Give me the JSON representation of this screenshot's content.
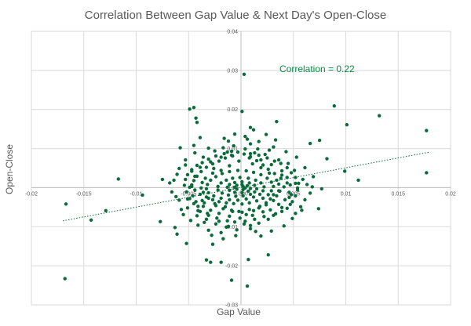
{
  "chart_data": {
    "type": "scatter",
    "title": "Correlation Between Gap Value & Next Day's Open-Close",
    "xlabel": "Gap Value",
    "ylabel": "Open-Close",
    "xlim": [
      -0.02,
      0.02
    ],
    "ylim": [
      -0.03,
      0.04
    ],
    "x_ticks": [
      -0.02,
      -0.015,
      -0.01,
      -0.005,
      0,
      0.005,
      0.01,
      0.015,
      0.02
    ],
    "x_tick_labels": [
      "-0.02",
      "-0.015",
      "-0.01",
      "-0.005",
      "0.000",
      "0.005",
      "0.01",
      "0.015",
      "0.02"
    ],
    "y_ticks": [
      -0.03,
      -0.02,
      -0.01,
      0,
      0.01,
      0.02,
      0.03,
      0.04
    ],
    "y_tick_labels": [
      "-0.03",
      "-0.02",
      "-0.01",
      "0.00",
      "0.01",
      "0.02",
      "0.03",
      "0.04"
    ],
    "grid": true,
    "annotation": "Correlation = 0.22",
    "trendline": {
      "style": "dotted",
      "x": [
        -0.017,
        0.018
      ],
      "y": [
        -0.0085,
        0.0091
      ]
    },
    "colors": {
      "points": "#0b6b3a",
      "trend": "#0b6b3a",
      "annotation": "#0b8a45"
    },
    "points": [
      [
        0.0003,
        0.029
      ],
      [
        -0.0045,
        0.0205
      ],
      [
        -0.0049,
        0.0201
      ],
      [
        0.0001,
        0.0195
      ],
      [
        0.0089,
        0.0209
      ],
      [
        0.0132,
        0.0184
      ],
      [
        0.0101,
        0.0161
      ],
      [
        0.0177,
        0.0146
      ],
      [
        0.0177,
        0.0038
      ],
      [
        -0.0042,
        0.0167
      ],
      [
        -0.0043,
        0.0178
      ],
      [
        0.0034,
        0.0169
      ],
      [
        0.0012,
        0.0148
      ],
      [
        0.0009,
        0.0154
      ],
      [
        0.0033,
        0.0122
      ],
      [
        0.0075,
        0.0121
      ],
      [
        0.0066,
        0.0113
      ],
      [
        -0.0058,
        0.0102
      ],
      [
        -0.0045,
        0.0108
      ],
      [
        0.0027,
        0.0096
      ],
      [
        0.0009,
        0.0112
      ],
      [
        0.0082,
        0.0074
      ],
      [
        0.0112,
        0.0019
      ],
      [
        0.0099,
        0.0042
      ],
      [
        0.0052,
        0.0011
      ],
      [
        0.0054,
        -0.0001
      ],
      [
        0.0039,
        0.0032
      ],
      [
        0.0077,
        -0.0003
      ],
      [
        0.0068,
        0.0002
      ],
      [
        0.0048,
        -0.0018
      ],
      [
        0.0061,
        -0.0031
      ],
      [
        0.0047,
        -0.0043
      ],
      [
        0.0058,
        -0.0058
      ],
      [
        0.0074,
        -0.0054
      ],
      [
        0.0052,
        -0.0066
      ],
      [
        -0.0167,
        -0.0042
      ],
      [
        -0.0168,
        -0.0233
      ],
      [
        -0.0143,
        -0.0083
      ],
      [
        -0.0129,
        -0.0059
      ],
      [
        -0.0117,
        0.0022
      ],
      [
        -0.0094,
        -0.0019
      ],
      [
        -0.0075,
        0.0021
      ],
      [
        -0.0077,
        -0.0087
      ],
      [
        -0.0063,
        -0.0102
      ],
      [
        -0.0061,
        -0.0119
      ],
      [
        -0.0052,
        -0.0143
      ],
      [
        -0.0055,
        -0.0069
      ],
      [
        -0.0051,
        -0.0029
      ],
      [
        -0.0049,
        0.0001
      ],
      [
        -0.0047,
        0.0046
      ],
      [
        -0.0037,
        -0.0033
      ],
      [
        -0.0035,
        -0.0089
      ],
      [
        -0.0033,
        -0.0185
      ],
      [
        -0.0029,
        -0.0191
      ],
      [
        -0.0028,
        -0.0122
      ],
      [
        -0.0009,
        -0.0237
      ],
      [
        0.0006,
        -0.0252
      ],
      [
        0.0007,
        -0.0184
      ],
      [
        0.0026,
        -0.0172
      ],
      [
        -0.0019,
        -0.0191
      ],
      [
        -0.0027,
        -0.0145
      ],
      [
        -0.0017,
        -0.0131
      ],
      [
        -0.0005,
        -0.0123
      ],
      [
        0.0014,
        -0.0112
      ],
      [
        0.0009,
        -0.0097
      ],
      [
        0.0003,
        -0.0093
      ],
      [
        -0.0012,
        -0.0099
      ],
      [
        -0.0021,
        -0.0086
      ],
      [
        -0.0031,
        -0.0071
      ],
      [
        -0.0039,
        -0.0061
      ],
      [
        -0.0041,
        -0.0048
      ],
      [
        -0.0035,
        -0.0039
      ],
      [
        -0.0025,
        -0.0041
      ],
      [
        -0.0015,
        -0.0049
      ],
      [
        -0.0009,
        -0.0058
      ],
      [
        -0.0002,
        -0.0061
      ],
      [
        0.0005,
        -0.0069
      ],
      [
        0.0012,
        -0.0059
      ],
      [
        0.0018,
        -0.0048
      ],
      [
        0.0024,
        -0.0039
      ],
      [
        0.0028,
        -0.0029
      ],
      [
        0.0031,
        -0.0018
      ],
      [
        0.0036,
        -0.0008
      ],
      [
        0.0041,
        0.0002
      ],
      [
        0.0044,
        0.0012
      ],
      [
        0.0038,
        0.0024
      ],
      [
        0.0032,
        0.0036
      ],
      [
        0.0026,
        0.0047
      ],
      [
        0.0021,
        0.0058
      ],
      [
        0.0015,
        0.0069
      ],
      [
        0.0009,
        0.0079
      ],
      [
        0.0003,
        0.0086
      ],
      [
        -0.0003,
        0.0091
      ],
      [
        -0.0009,
        0.0083
      ],
      [
        -0.0015,
        0.0076
      ],
      [
        -0.0021,
        0.0068
      ],
      [
        -0.0027,
        0.0061
      ],
      [
        -0.0033,
        0.0052
      ],
      [
        -0.0038,
        0.0041
      ],
      [
        -0.0042,
        0.0029
      ],
      [
        -0.0045,
        0.0018
      ],
      [
        -0.0047,
        0.0007
      ],
      [
        -0.0044,
        -0.0006
      ],
      [
        -0.0039,
        -0.0017
      ],
      [
        -0.0033,
        -0.0024
      ],
      [
        -0.0027,
        -0.0031
      ],
      [
        -0.0021,
        -0.0036
      ],
      [
        -0.0014,
        -0.0039
      ],
      [
        -0.0007,
        -0.0041
      ],
      [
        0.0001,
        -0.0042
      ],
      [
        0.0008,
        -0.0039
      ],
      [
        0.0015,
        -0.0034
      ],
      [
        0.0021,
        -0.0027
      ],
      [
        0.0026,
        -0.0018
      ],
      [
        0.0029,
        -0.0008
      ],
      [
        0.0031,
        0.0003
      ],
      [
        0.0029,
        0.0014
      ],
      [
        0.0025,
        0.0024
      ],
      [
        0.0019,
        0.0033
      ],
      [
        0.0012,
        0.0039
      ],
      [
        0.0005,
        0.0043
      ],
      [
        -0.0003,
        0.0044
      ],
      [
        -0.0011,
        0.0041
      ],
      [
        -0.0018,
        0.0036
      ],
      [
        -0.0024,
        0.0028
      ],
      [
        -0.0029,
        0.0019
      ],
      [
        -0.0032,
        0.0008
      ],
      [
        -0.0033,
        -0.0003
      ],
      [
        -0.0031,
        -0.0013
      ],
      [
        -0.0026,
        -0.0021
      ],
      [
        -0.0019,
        -0.0027
      ],
      [
        -0.0011,
        -0.0031
      ],
      [
        -0.0003,
        -0.0032
      ],
      [
        0.0005,
        -0.0029
      ],
      [
        0.0012,
        -0.0024
      ],
      [
        0.0018,
        -0.0017
      ],
      [
        0.0021,
        -0.0008
      ],
      [
        0.0022,
        0.0002
      ],
      [
        0.0019,
        0.0012
      ],
      [
        0.0014,
        0.0019
      ],
      [
        0.0007,
        0.0024
      ],
      [
        -0.0001,
        0.0026
      ],
      [
        -0.0008,
        0.0024
      ],
      [
        -0.0014,
        0.0019
      ],
      [
        -0.0019,
        0.0012
      ],
      [
        -0.0022,
        0.0003
      ],
      [
        -0.0022,
        -0.0006
      ],
      [
        -0.0018,
        -0.0014
      ],
      [
        -0.0012,
        -0.0019
      ],
      [
        -0.0005,
        -0.0022
      ],
      [
        0.0002,
        -0.0021
      ],
      [
        0.0009,
        -0.0017
      ],
      [
        0.0013,
        -0.0011
      ],
      [
        0.0015,
        -0.0003
      ],
      [
        0.0013,
        0.0006
      ],
      [
        0.0008,
        0.0012
      ],
      [
        0.0001,
        0.0015
      ],
      [
        -0.0006,
        0.0013
      ],
      [
        -0.0011,
        0.0008
      ],
      [
        -0.0013,
        0.0001
      ],
      [
        -0.0011,
        -0.0007
      ],
      [
        -0.0006,
        -0.0012
      ],
      [
        0.0001,
        -0.0013
      ],
      [
        0.0007,
        -0.0009
      ],
      [
        0.0009,
        -0.0002
      ],
      [
        0.0006,
        0.0005
      ],
      [
        0.0001,
        0.0008
      ],
      [
        -0.0004,
        0.0006
      ],
      [
        -0.0006,
        0.0001
      ],
      [
        -0.0004,
        -0.0004
      ],
      [
        0.0002,
        -0.0005
      ],
      [
        0.0004,
        -0.0001
      ],
      [
        0.0002,
        0.0003
      ],
      [
        -0.0017,
        0.0102
      ],
      [
        -0.0012,
        0.0119
      ],
      [
        0.0004,
        0.0131
      ],
      [
        -0.0007,
        0.0107
      ],
      [
        0.0016,
        0.0099
      ],
      [
        -0.0025,
        0.0094
      ],
      [
        0.0023,
        0.0085
      ],
      [
        -0.0036,
        0.0078
      ],
      [
        0.0036,
        0.0071
      ],
      [
        -0.0053,
        0.0058
      ],
      [
        0.0045,
        0.0062
      ],
      [
        -0.0061,
        0.0034
      ],
      [
        0.0051,
        0.0044
      ],
      [
        -0.0068,
        0.0012
      ],
      [
        0.0059,
        0.0021
      ],
      [
        -0.0066,
        -0.0011
      ],
      [
        0.0063,
        0.0008
      ],
      [
        -0.0059,
        -0.0032
      ],
      [
        0.0046,
        -0.0025
      ],
      [
        -0.0051,
        -0.0052
      ],
      [
        0.0039,
        -0.0051
      ],
      [
        -0.0042,
        -0.0072
      ],
      [
        0.0033,
        -0.0067
      ],
      [
        -0.0033,
        -0.0081
      ],
      [
        0.0026,
        -0.0081
      ],
      [
        -0.0024,
        -0.0093
      ],
      [
        0.0017,
        -0.0091
      ],
      [
        -0.0014,
        -0.0101
      ],
      [
        0.0009,
        -0.0105
      ],
      [
        -0.0004,
        -0.0108
      ],
      [
        0.0019,
        -0.0124
      ],
      [
        -0.0019,
        -0.0115
      ],
      [
        0.0029,
        -0.0111
      ],
      [
        -0.0031,
        -0.0109
      ],
      [
        0.0041,
        -0.0098
      ],
      [
        -0.0041,
        -0.0096
      ],
      [
        0.0049,
        -0.0079
      ],
      [
        -0.0048,
        -0.0084
      ],
      [
        0.0057,
        -0.0049
      ],
      [
        -0.0057,
        -0.0056
      ],
      [
        0.0066,
        -0.0014
      ],
      [
        -0.0062,
        -0.0023
      ],
      [
        0.0069,
        0.0028
      ],
      [
        -0.0064,
        0.0019
      ],
      [
        0.0061,
        0.0051
      ],
      [
        -0.0059,
        0.0049
      ],
      [
        0.0053,
        0.0078
      ],
      [
        -0.0053,
        0.0071
      ],
      [
        0.0043,
        0.0092
      ],
      [
        -0.0044,
        0.0089
      ],
      [
        0.0031,
        0.0104
      ],
      [
        -0.0031,
        0.0101
      ],
      [
        0.0017,
        0.0118
      ],
      [
        -0.0016,
        0.0126
      ],
      [
        0.0006,
        0.0124
      ],
      [
        -0.0006,
        0.0137
      ],
      [
        -0.0039,
        0.0128
      ],
      [
        0.0024,
        0.0136
      ],
      [
        -0.0026,
        0.0049
      ],
      [
        0.0011,
        0.0061
      ],
      [
        -0.0011,
        0.0056
      ],
      [
        0.0019,
        0.0051
      ],
      [
        -0.0019,
        0.0044
      ],
      [
        0.0027,
        0.0037
      ],
      [
        -0.0027,
        0.0037
      ],
      [
        0.0034,
        0.0019
      ],
      [
        -0.0034,
        0.0024
      ],
      [
        0.0036,
        0.0009
      ],
      [
        -0.0037,
        0.0013
      ],
      [
        0.0037,
        -0.0009
      ],
      [
        -0.0038,
        -0.0001
      ],
      [
        0.0034,
        -0.0021
      ],
      [
        -0.0036,
        -0.0012
      ],
      [
        0.0031,
        -0.0033
      ],
      [
        -0.0031,
        -0.0027
      ],
      [
        0.0024,
        -0.0044
      ],
      [
        -0.0024,
        -0.0046
      ],
      [
        0.0017,
        -0.0052
      ],
      [
        -0.0017,
        -0.0054
      ],
      [
        0.0008,
        -0.0056
      ],
      [
        -0.0008,
        -0.0061
      ],
      [
        0.0001,
        -0.0063
      ],
      [
        0.0011,
        -0.0071
      ],
      [
        -0.0011,
        -0.0073
      ],
      [
        0.0021,
        -0.0062
      ],
      [
        -0.0021,
        -0.0066
      ],
      [
        0.0028,
        -0.0057
      ],
      [
        -0.0029,
        -0.0058
      ],
      [
        0.0036,
        -0.0043
      ],
      [
        -0.0036,
        -0.0048
      ],
      [
        0.0042,
        -0.0031
      ],
      [
        -0.0043,
        -0.0036
      ],
      [
        0.0046,
        -0.0012
      ],
      [
        -0.0046,
        -0.0021
      ],
      [
        0.0047,
        0.0007
      ],
      [
        -0.0047,
        0.0003
      ],
      [
        0.0044,
        0.0026
      ],
      [
        -0.0044,
        0.0029
      ],
      [
        0.0039,
        0.0043
      ],
      [
        -0.0039,
        0.0052
      ],
      [
        0.0029,
        0.0059
      ],
      [
        -0.0029,
        0.0066
      ],
      [
        0.0019,
        0.0071
      ],
      [
        -0.0019,
        0.0078
      ],
      [
        0.0008,
        0.0076
      ],
      [
        -0.0008,
        0.0081
      ],
      [
        0.0004,
        0.0099
      ],
      [
        -0.0002,
        0.0068
      ],
      [
        0.0013,
        0.0089
      ],
      [
        -0.0013,
        0.0091
      ],
      [
        -0.0001,
        -0.0078
      ],
      [
        0.0004,
        -0.0086
      ],
      [
        -0.0006,
        -0.0088
      ],
      [
        0.0013,
        -0.0081
      ],
      [
        -0.0013,
        -0.0085
      ],
      [
        0.0022,
        -0.0074
      ],
      [
        -0.0023,
        -0.0078
      ],
      [
        0.0031,
        -0.0071
      ],
      [
        -0.0032,
        -0.0066
      ],
      [
        0.0039,
        -0.0061
      ],
      [
        -0.0041,
        -0.0059
      ],
      [
        0.0044,
        -0.0053
      ],
      [
        -0.0045,
        -0.0041
      ],
      [
        0.0049,
        -0.0036
      ],
      [
        -0.0049,
        -0.0028
      ],
      [
        0.0052,
        -0.0021
      ],
      [
        -0.0052,
        -0.0011
      ],
      [
        0.0054,
        -0.0006
      ],
      [
        -0.0054,
        0.0006
      ],
      [
        0.0055,
        0.0011
      ],
      [
        -0.0053,
        0.0021
      ],
      [
        0.0052,
        0.0026
      ],
      [
        -0.0051,
        0.0033
      ],
      [
        0.0048,
        0.0038
      ],
      [
        -0.0047,
        0.0042
      ],
      [
        0.0044,
        0.0051
      ],
      [
        -0.0042,
        0.0057
      ],
      [
        0.0038,
        0.0062
      ],
      [
        -0.0037,
        0.0064
      ],
      [
        0.0032,
        0.0068
      ],
      [
        -0.0031,
        0.0073
      ],
      [
        0.0025,
        0.0076
      ],
      [
        -0.0024,
        0.0081
      ],
      [
        0.0017,
        0.0083
      ],
      [
        -0.0016,
        0.0087
      ],
      [
        0.0009,
        0.0087
      ],
      [
        -0.0009,
        0.0093
      ]
    ]
  }
}
